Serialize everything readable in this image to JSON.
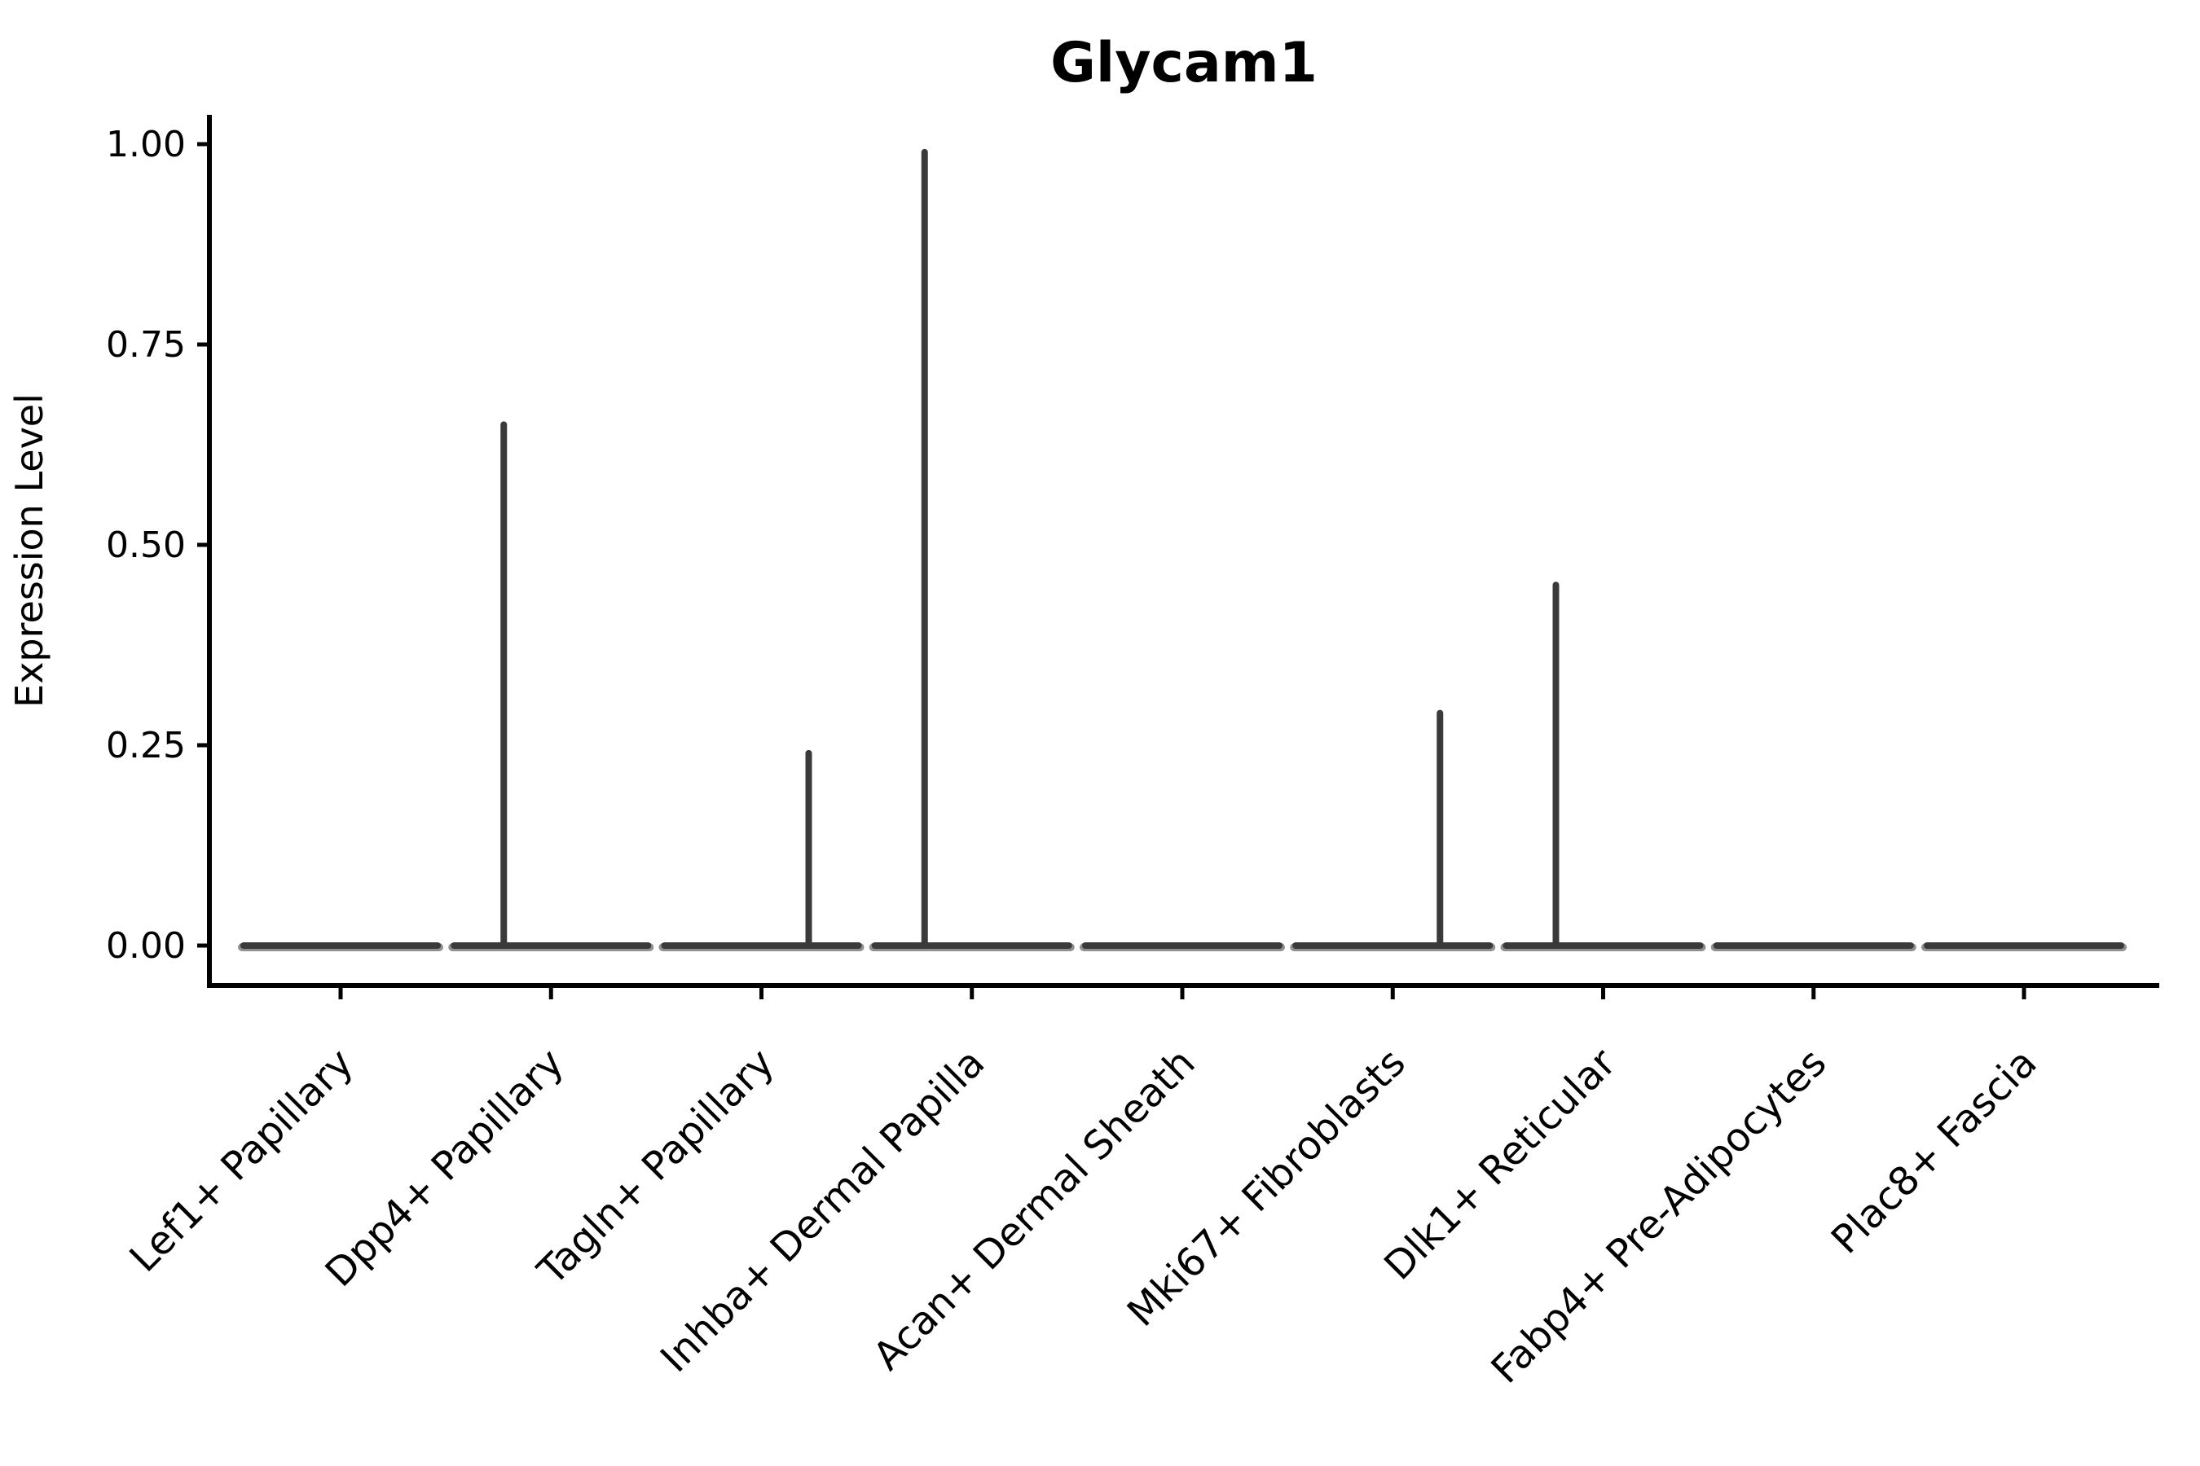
{
  "figure": {
    "background": "#ffffff"
  },
  "chart_data": {
    "type": "violin",
    "title": "Glycam1",
    "xlabel": "",
    "ylabel": "Expression Level",
    "ylim": [
      0,
      1.0
    ],
    "grid": "off",
    "legend": "none",
    "yticks": [
      {
        "value": 0.0,
        "label": "0.00"
      },
      {
        "value": 0.25,
        "label": "0.25"
      },
      {
        "value": 0.5,
        "label": "0.50"
      },
      {
        "value": 0.75,
        "label": "0.75"
      },
      {
        "value": 1.0,
        "label": "1.00"
      }
    ],
    "categories": [
      "Lef1+ Papillary",
      "Dpp4+ Papillary",
      "Tagln+ Papillary",
      "Inhba+ Dermal Papilla",
      "Acan+ Dermal Sheath",
      "Mki67+ Fibroblasts",
      "Dlk1+ Reticular",
      "Fabp4+ Pre-Adipocytes",
      "Plac8+ Fascia"
    ],
    "violins": [
      {
        "category": "Lef1+ Papillary",
        "base_value": 0.0,
        "spike_value": 0.0,
        "spike_side": null
      },
      {
        "category": "Dpp4+ Papillary",
        "base_value": 0.0,
        "spike_value": 0.65,
        "spike_side": "left"
      },
      {
        "category": "Tagln+ Papillary",
        "base_value": 0.0,
        "spike_value": 0.24,
        "spike_side": "right"
      },
      {
        "category": "Inhba+ Dermal Papilla",
        "base_value": 0.0,
        "spike_value": 0.99,
        "spike_side": "left"
      },
      {
        "category": "Acan+ Dermal Sheath",
        "base_value": 0.0,
        "spike_value": 0.0,
        "spike_side": null
      },
      {
        "category": "Mki67+ Fibroblasts",
        "base_value": 0.0,
        "spike_value": 0.29,
        "spike_side": "right"
      },
      {
        "category": "Dlk1+ Reticular",
        "base_value": 0.0,
        "spike_value": 0.45,
        "spike_side": "left"
      },
      {
        "category": "Fabp4+ Pre-Adipocytes",
        "base_value": 0.0,
        "spike_value": 0.0,
        "spike_side": null
      },
      {
        "category": "Plac8+ Fascia",
        "base_value": 0.0,
        "spike_value": 0.0,
        "spike_side": null
      }
    ],
    "colors": {
      "violin_stroke": "#3a3a3a",
      "violin_fill_edge": "#8f8f8f",
      "axis": "#000000",
      "text": "#000000"
    }
  }
}
